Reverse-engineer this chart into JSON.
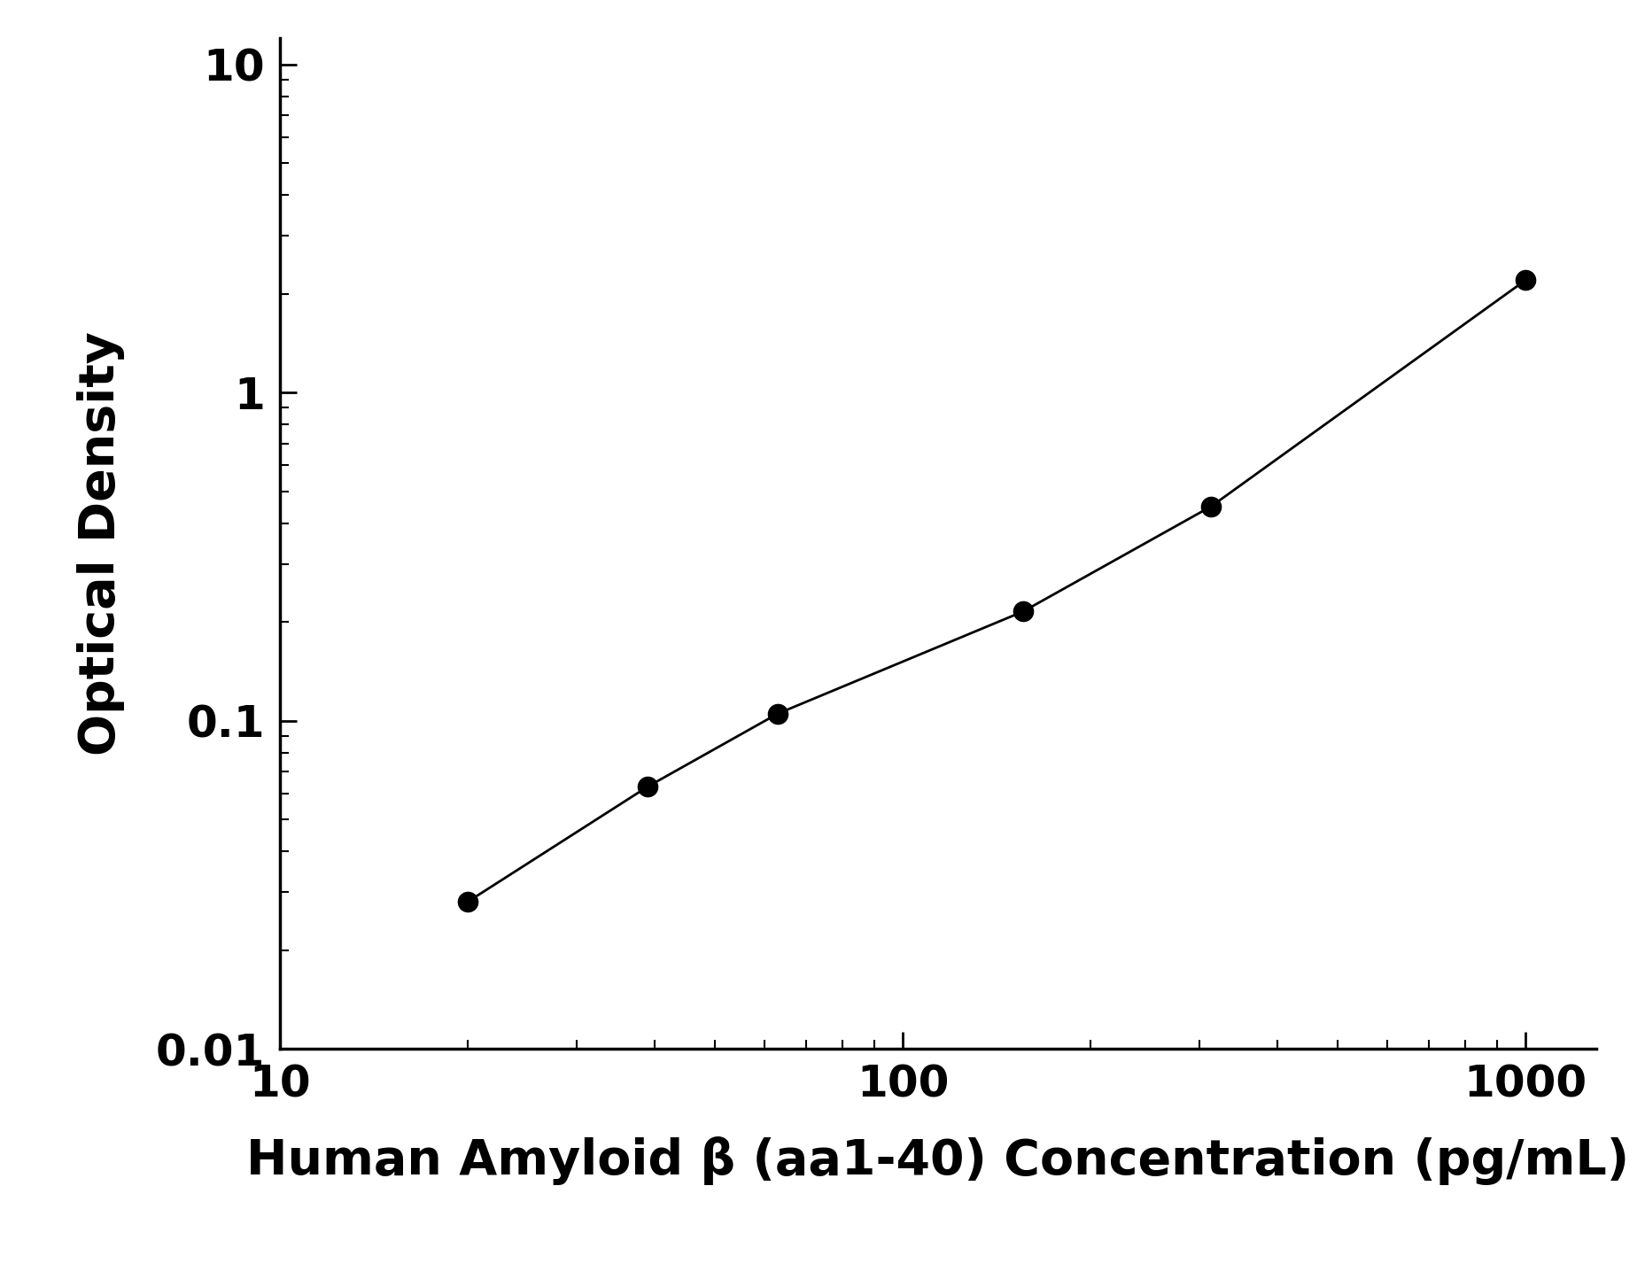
{
  "x_values": [
    20,
    39,
    63,
    156,
    313,
    1000
  ],
  "y_values": [
    0.028,
    0.063,
    0.105,
    0.215,
    0.45,
    2.2
  ],
  "xlim": [
    10,
    1300
  ],
  "ylim": [
    0.01,
    12
  ],
  "xlabel": "Human Amyloid β (aa1-40) Concentration (pg/mL)",
  "ylabel": "Optical Density",
  "line_color": "#000000",
  "marker_color": "#000000",
  "marker_size": 16,
  "line_width": 2.0,
  "xlabel_fontsize": 40,
  "ylabel_fontsize": 40,
  "tick_fontsize": 36,
  "background_color": "#ffffff",
  "xtick_positions": [
    10,
    100,
    1000
  ],
  "ytick_positions": [
    0.01,
    0.1,
    1,
    10
  ]
}
